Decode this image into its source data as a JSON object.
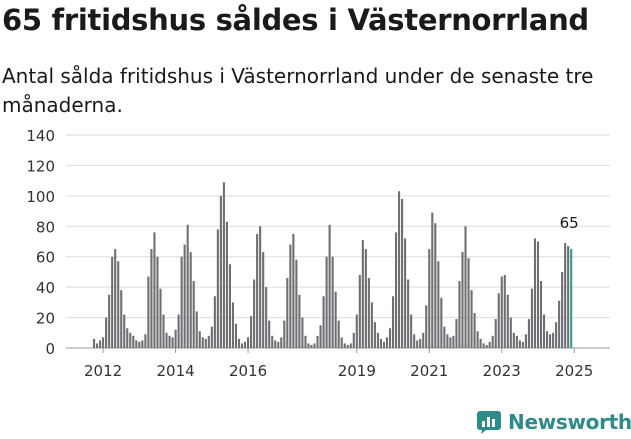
{
  "header": {
    "title": "65 fritidshus såldes i Västernorrland",
    "subtitle": "Antal sålda fritidshus i Västernorrland under de senaste tre månaderna."
  },
  "brand": {
    "name": "Newsworthy",
    "color": "#2e8b8b"
  },
  "colors": {
    "bar": "#6e6e73",
    "highlight": "#2e9c98",
    "grid": "#dddddd"
  },
  "chart_data": {
    "type": "bar",
    "title": "65 fritidshus såldes i Västernorrland",
    "subtitle": "Antal sålda fritidshus i Västernorrland under de senaste tre månaderna.",
    "ylim": [
      0,
      140
    ],
    "yticks": [
      0,
      20,
      40,
      60,
      80,
      100,
      120,
      140
    ],
    "xtick_labels": [
      "2012",
      "2014",
      "2016",
      "2019",
      "2021",
      "2023",
      "2025"
    ],
    "xtick_positions": [
      3,
      27,
      51,
      87,
      111,
      135,
      159
    ],
    "grid": true,
    "highlight_label": "65",
    "values": [
      6,
      3,
      5,
      7,
      20,
      35,
      60,
      65,
      57,
      38,
      22,
      13,
      10,
      8,
      5,
      4,
      5,
      9,
      47,
      65,
      76,
      60,
      39,
      22,
      10,
      8,
      7,
      12,
      22,
      60,
      68,
      81,
      63,
      44,
      24,
      11,
      7,
      6,
      8,
      14,
      34,
      78,
      100,
      109,
      83,
      55,
      30,
      16,
      6,
      3,
      4,
      7,
      21,
      45,
      75,
      80,
      63,
      40,
      18,
      8,
      5,
      4,
      7,
      18,
      46,
      68,
      75,
      58,
      35,
      20,
      8,
      3,
      2,
      3,
      8,
      15,
      34,
      60,
      81,
      60,
      37,
      18,
      7,
      3,
      2,
      3,
      10,
      22,
      48,
      71,
      65,
      46,
      30,
      17,
      10,
      6,
      4,
      7,
      13,
      34,
      76,
      103,
      98,
      72,
      45,
      22,
      9,
      5,
      6,
      10,
      28,
      65,
      89,
      82,
      57,
      33,
      14,
      9,
      7,
      8,
      19,
      44,
      63,
      80,
      59,
      38,
      23,
      11,
      6,
      3,
      2,
      4,
      8,
      19,
      36,
      47,
      48,
      35,
      20,
      10,
      8,
      5,
      4,
      9,
      19,
      39,
      72,
      70,
      44,
      22,
      11,
      9,
      10,
      17,
      31,
      50,
      69,
      67,
      65
    ]
  }
}
